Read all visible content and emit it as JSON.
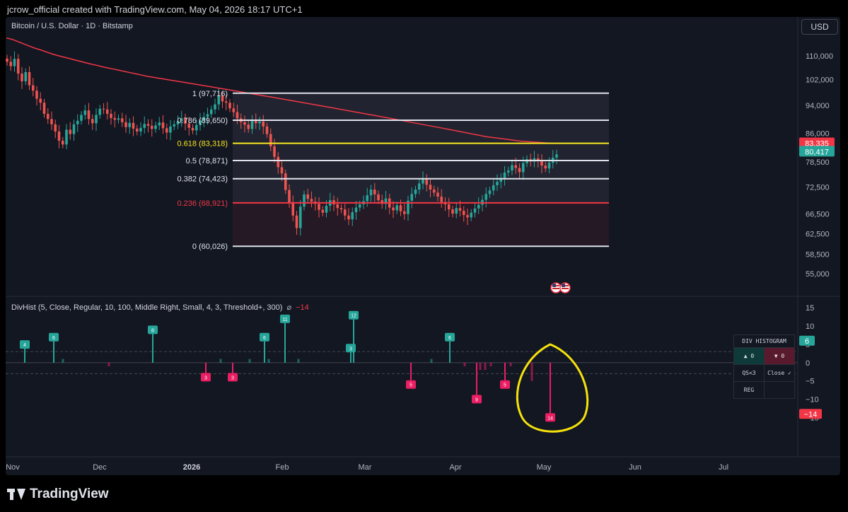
{
  "header": {
    "attribution": "jcrow_official created with TradingView.com, May 04, 2026 18:17 UTC+1"
  },
  "symbol": {
    "title": "Bitcoin / U.S. Dollar · 1D · Bitstamp"
  },
  "currency_button": "USD",
  "indicator": {
    "label": "DivHist (5, Close, Regular, 10, 100, Middle Right, Small, 4, 3, Threshold+, 300)",
    "value": "−14",
    "eye": "⌀"
  },
  "div_table": {
    "title": "DIV HISTOGRAM",
    "bull": "▲ 0",
    "bear": "▼ 0",
    "qs": "QS<3",
    "close": "Close ✓",
    "reg": "REG"
  },
  "footer": {
    "brand": "TradingView"
  },
  "colors": {
    "up": "#26a69a",
    "down": "#ef5350",
    "ma": "#f23645",
    "fib_gold": "#f7e51f",
    "fib_red": "#f23645",
    "bg": "#131722",
    "annotation": "#f5e20c"
  },
  "chart_data": [
    {
      "type": "candlestick",
      "title": "Bitcoin / U.S. Dollar · 1D · Bitstamp",
      "x_labels": [
        "Nov",
        "Dec",
        "2026",
        "Feb",
        "Mar",
        "Apr",
        "May",
        "Jun",
        "Jul"
      ],
      "y_ticks": [
        55000,
        58500,
        62500,
        66500,
        72500,
        78500,
        86000,
        94000,
        102000,
        110000
      ],
      "y_tick_labels": [
        "55,000",
        "58,500",
        "62,500",
        "66,500",
        "72,500",
        "78,500",
        "86,000",
        "94,000",
        "102,000",
        "110,000"
      ],
      "ylim": [
        52000,
        118000
      ],
      "y_scale": "log",
      "last_price": "80,417",
      "ma_value": "83,335",
      "candles_close": [
        108000,
        106500,
        109000,
        104000,
        101500,
        104500,
        100200,
        98500,
        96000,
        94800,
        91500,
        90000,
        88500,
        86500,
        84000,
        83000,
        87000,
        85800,
        88500,
        89500,
        91200,
        92500,
        90000,
        88800,
        91200,
        93000,
        92800,
        91500,
        90300,
        89800,
        90200,
        89100,
        87700,
        88900,
        87300,
        86500,
        87500,
        88600,
        88100,
        87200,
        88200,
        89000,
        87400,
        86200,
        87900,
        88500,
        89400,
        90200,
        88700,
        87500,
        86800,
        88300,
        89600,
        90600,
        91400,
        92800,
        94300,
        96900,
        95200,
        94800,
        93100,
        92000,
        90200,
        89100,
        88400,
        87200,
        89500,
        88800,
        89300,
        87900,
        85800,
        82500,
        79800,
        77200,
        75700,
        71800,
        68900,
        66200,
        63600,
        68100,
        70800,
        69800,
        69200,
        68700,
        67400,
        66800,
        68300,
        69500,
        68600,
        67800,
        67500,
        66200,
        65400,
        66900,
        67900,
        68600,
        69300,
        70600,
        71900,
        70800,
        69500,
        68700,
        69900,
        67900,
        67300,
        68400,
        67100,
        66500,
        69400,
        70900,
        71900,
        73300,
        74400,
        73000,
        71900,
        71200,
        70300,
        69100,
        68600,
        67500,
        66600,
        67800,
        67200,
        66300,
        65800,
        66800,
        67700,
        68500,
        69600,
        70900,
        71700,
        72900,
        73700,
        74600,
        75900,
        76400,
        77700,
        77000,
        76000,
        78200,
        79200,
        78600,
        79400,
        78800,
        77600,
        76900,
        78300,
        79600,
        80417
      ],
      "ma200": [
        116500,
        116000,
        115200,
        114400,
        113600,
        112800,
        112200,
        111500,
        110800,
        110200,
        109700,
        109200,
        108700,
        108200,
        107700,
        107200,
        106800,
        106300,
        105900,
        105500,
        105100,
        104700,
        104300,
        103900,
        103500,
        103100,
        102800,
        102500,
        102200,
        101900,
        101600,
        101300,
        101000,
        100700,
        100400,
        100100,
        99800,
        99500,
        99200,
        98900,
        98600,
        98300,
        98000,
        97700,
        97400,
        97100,
        96800,
        96500,
        96200,
        95900,
        95600,
        95300,
        95000,
        94700,
        94400,
        94100,
        93800,
        93500,
        93200,
        92900,
        92600,
        92300,
        92000,
        91700,
        91400,
        91100,
        90800,
        90500,
        90200,
        89900,
        89600,
        89300,
        89000,
        88700,
        88400,
        88100,
        87800,
        87500,
        87200,
        86900,
        86600,
        86300,
        86000,
        85700,
        85400,
        85100,
        84900,
        84700,
        84500,
        84300,
        84100,
        83900,
        83800,
        83700,
        83600,
        83500,
        83400,
        83335
      ],
      "fib_levels": [
        {
          "ratio": "1",
          "price": 97716,
          "label": "1 (97,716)"
        },
        {
          "ratio": "0.786",
          "price": 89650,
          "label": "0.786 (89,650)"
        },
        {
          "ratio": "0.618",
          "price": 83318,
          "label": "0.618 (83,318)"
        },
        {
          "ratio": "0.5",
          "price": 78871,
          "label": "0.5 (78,871)"
        },
        {
          "ratio": "0.382",
          "price": 74423,
          "label": "0.382 (74,423)"
        },
        {
          "ratio": "0.236",
          "price": 68921,
          "label": "0.236 (68,921)"
        },
        {
          "ratio": "0",
          "price": 60026,
          "label": "0 (60,026)"
        }
      ]
    },
    {
      "type": "bar",
      "title": "DivHist",
      "y_ticks": [
        15,
        10,
        5,
        0,
        -5,
        -10,
        -15
      ],
      "y_tick_labels": [
        "15",
        "10",
        "5",
        "0",
        "−5",
        "−10",
        "−15"
      ],
      "ylim": [
        -18,
        16
      ],
      "threshold_lines": [
        3,
        -3
      ],
      "last_value_label": "−14",
      "table_value_label": "6",
      "signals": [
        {
          "value": 4,
          "label": "4"
        },
        {
          "value": 6,
          "label": "6"
        },
        {
          "value": 8,
          "label": "8"
        },
        {
          "value": -3,
          "label": "3"
        },
        {
          "value": -3,
          "label": "3"
        },
        {
          "value": 6,
          "label": "6"
        },
        {
          "value": 11,
          "label": "11"
        },
        {
          "value": 3,
          "label": "3"
        },
        {
          "value": 12,
          "label": "12"
        },
        {
          "value": -5,
          "label": "5"
        },
        {
          "value": 6,
          "label": "6"
        },
        {
          "value": -9,
          "label": "9"
        },
        {
          "value": -5,
          "label": "5"
        },
        {
          "value": -14,
          "label": "14"
        }
      ],
      "minor_values": [
        1,
        -1,
        1,
        1,
        1,
        1,
        1,
        -1,
        -2,
        -2,
        -1,
        -5,
        -1
      ]
    }
  ]
}
